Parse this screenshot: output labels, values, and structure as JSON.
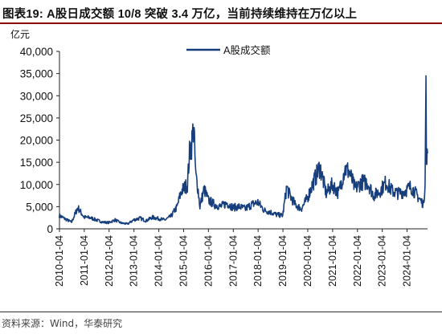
{
  "title": "图表19:  A股日成交额 10/8 突破 3.4 万亿，当前持续维持在万亿以上",
  "source": "资料来源：Wind，华泰研究",
  "colors": {
    "series": "#173e7c",
    "title_rule": "#8b0000"
  },
  "chart_data": {
    "type": "line",
    "y_unit_label": "亿元",
    "ylim": [
      0,
      40000
    ],
    "y_ticks": [
      "0",
      "5,000",
      "10,000",
      "15,000",
      "20,000",
      "25,000",
      "30,000",
      "35,000",
      "40,000"
    ],
    "x_ticks": [
      "2010-01-04",
      "2011-01-04",
      "2012-01-04",
      "2013-01-04",
      "2014-01-04",
      "2015-01-04",
      "2016-01-04",
      "2017-01-04",
      "2018-01-04",
      "2019-01-04",
      "2020-01-04",
      "2021-01-04",
      "2022-01-04",
      "2023-01-04",
      "2024-01-04"
    ],
    "x_range": [
      "2010-01-04",
      "2024-10-31"
    ],
    "grid": false,
    "legend_position": "top-center",
    "series": [
      {
        "name": "A股成交额",
        "x": [
          "2010-01",
          "2010-04",
          "2010-07",
          "2010-10",
          "2011-01",
          "2011-04",
          "2011-07",
          "2011-10",
          "2012-01",
          "2012-04",
          "2012-07",
          "2012-10",
          "2013-01",
          "2013-04",
          "2013-07",
          "2013-10",
          "2014-01",
          "2014-04",
          "2014-07",
          "2014-10",
          "2014-12",
          "2015-03",
          "2015-04",
          "2015-05",
          "2015-06",
          "2015-07",
          "2015-08",
          "2015-09",
          "2015-11",
          "2016-01",
          "2016-04",
          "2016-07",
          "2016-10",
          "2017-01",
          "2017-04",
          "2017-07",
          "2017-10",
          "2018-01",
          "2018-04",
          "2018-07",
          "2018-10",
          "2019-01",
          "2019-03",
          "2019-04",
          "2019-07",
          "2019-10",
          "2020-01",
          "2020-03",
          "2020-07",
          "2020-10",
          "2021-01",
          "2021-04",
          "2021-07",
          "2021-09",
          "2021-12",
          "2022-03",
          "2022-06",
          "2022-09",
          "2022-12",
          "2023-03",
          "2023-06",
          "2023-09",
          "2023-12",
          "2024-03",
          "2024-06",
          "2024-09",
          "2024-09-25",
          "2024-10-08",
          "2024-10-15",
          "2024-10-31"
        ],
        "values": [
          3000,
          2200,
          1500,
          4800,
          2600,
          2500,
          2000,
          1500,
          1400,
          2000,
          1300,
          1100,
          2000,
          2400,
          1800,
          2600,
          2300,
          2000,
          2800,
          5000,
          8500,
          10000,
          17000,
          19000,
          23500,
          12000,
          9500,
          5000,
          9000,
          6500,
          5500,
          5000,
          5800,
          4800,
          5000,
          4500,
          5500,
          6000,
          4200,
          3800,
          3200,
          3000,
          9500,
          8000,
          5500,
          4500,
          7000,
          9500,
          14000,
          8000,
          10000,
          8000,
          13500,
          13000,
          9000,
          10500,
          10500,
          7500,
          8500,
          10500,
          8500,
          8000,
          8500,
          9500,
          7500,
          5500,
          10000,
          34500,
          14000,
          17000
        ]
      }
    ]
  }
}
